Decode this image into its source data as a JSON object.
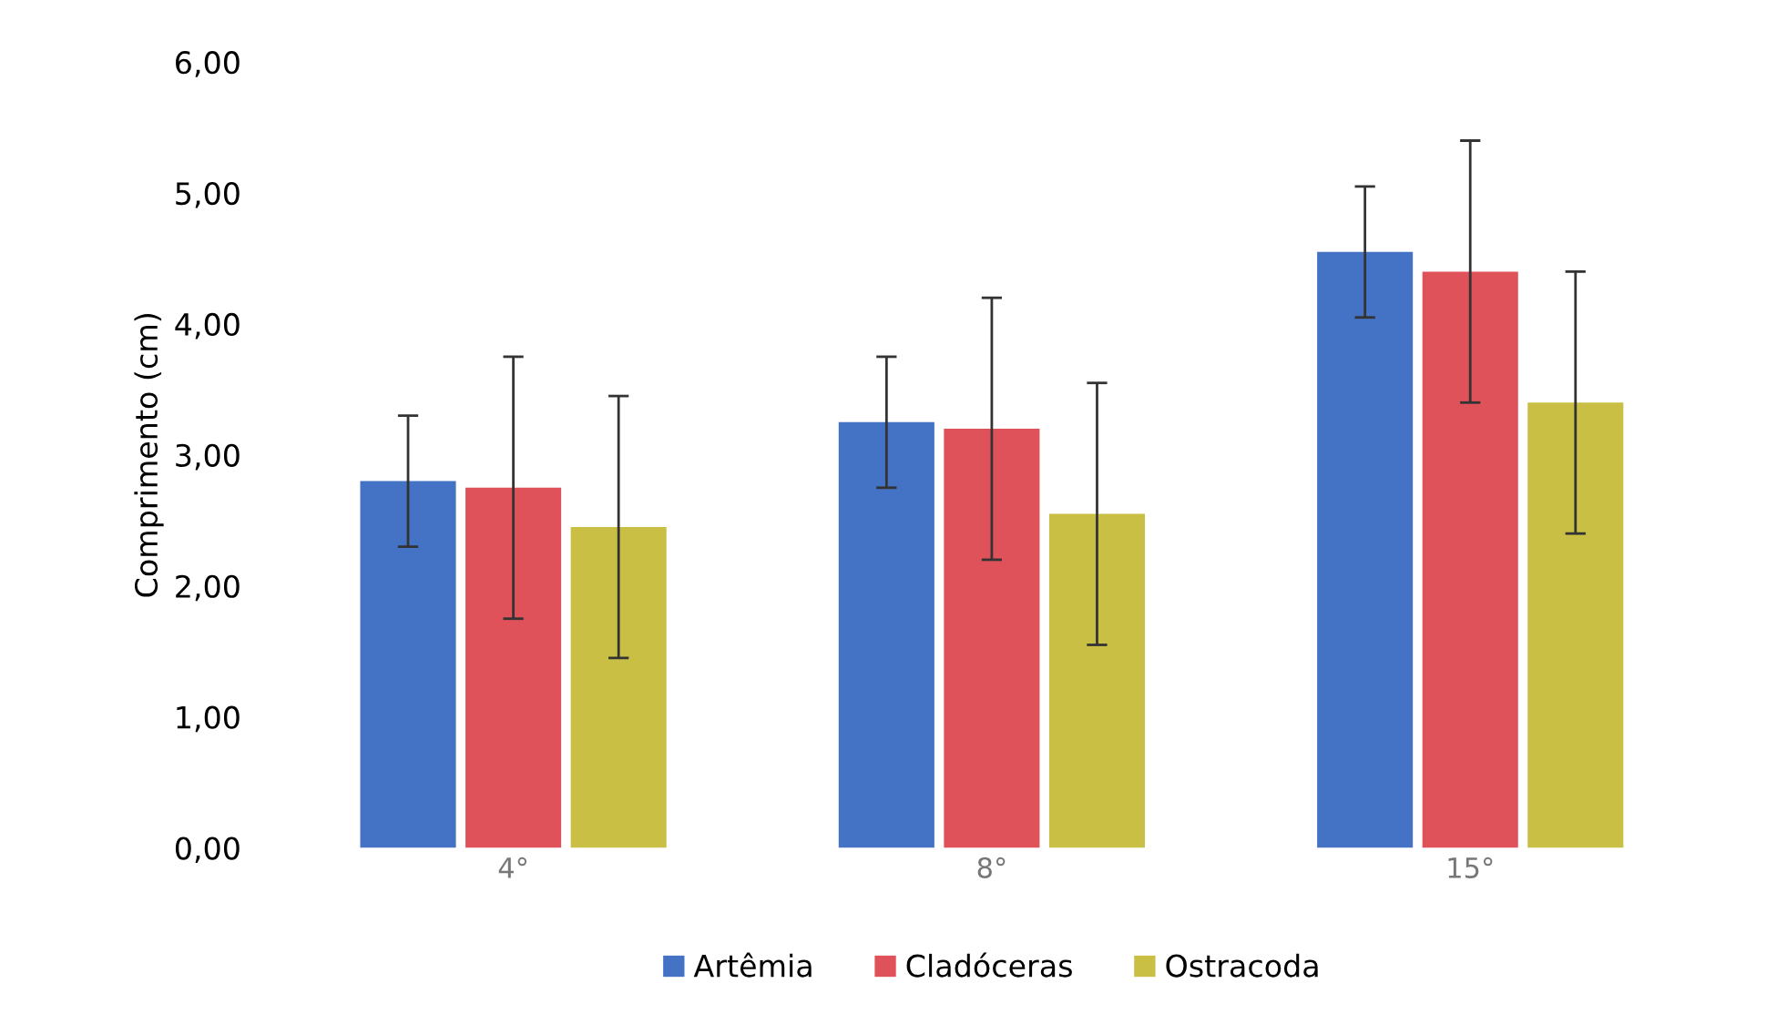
{
  "chart_data": {
    "type": "bar",
    "ylabel": "Comprimento (cm)",
    "categories": [
      "4°",
      "8°",
      "15°"
    ],
    "series": [
      {
        "name": "Artêmia",
        "color": "#4472c4",
        "values": [
          2.8,
          3.25,
          4.55
        ],
        "errors": [
          0.5,
          0.5,
          0.5
        ]
      },
      {
        "name": "Cladóceras",
        "color": "#e0525a",
        "values": [
          2.75,
          3.2,
          4.4
        ],
        "errors": [
          1.0,
          1.0,
          1.0
        ]
      },
      {
        "name": "Ostracoda",
        "color": "#c9bf45",
        "values": [
          2.45,
          2.55,
          3.4
        ],
        "errors": [
          1.0,
          1.0,
          1.0
        ]
      }
    ],
    "ylim": [
      0,
      6
    ],
    "yticks": [
      {
        "value": 0,
        "label": "0,00"
      },
      {
        "value": 1,
        "label": "1,00"
      },
      {
        "value": 2,
        "label": "2,00"
      },
      {
        "value": 3,
        "label": "3,00"
      },
      {
        "value": 4,
        "label": "4,00"
      },
      {
        "value": 5,
        "label": "5,00"
      },
      {
        "value": 6,
        "label": "6,00"
      }
    ],
    "legend": "bottom",
    "grid": false
  }
}
